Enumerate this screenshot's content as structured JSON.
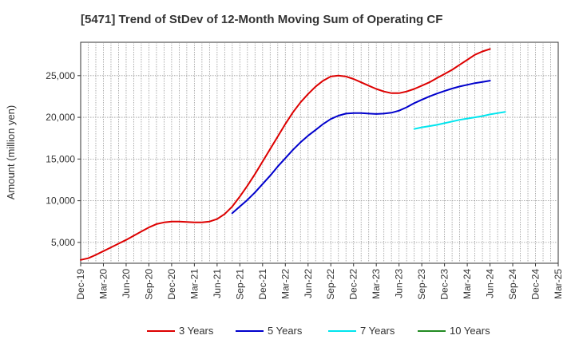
{
  "chart_data": {
    "type": "line",
    "title": "[5471]  Trend of StDev of 12-Month Moving Sum of Operating CF",
    "ylabel": "Amount (million yen)",
    "xlabel": "",
    "x_ticks": [
      "Dec-19",
      "Mar-20",
      "Jun-20",
      "Sep-20",
      "Dec-20",
      "Mar-21",
      "Jun-21",
      "Sep-21",
      "Dec-21",
      "Mar-22",
      "Jun-22",
      "Sep-22",
      "Dec-22",
      "Mar-23",
      "Jun-23",
      "Sep-23",
      "Dec-23",
      "Mar-24",
      "Jun-24",
      "Sep-24",
      "Dec-24",
      "Mar-25"
    ],
    "y_ticks": [
      "5,000",
      "10,000",
      "15,000",
      "20,000",
      "25,000"
    ],
    "y_tick_values": [
      5000,
      10000,
      15000,
      20000,
      25000
    ],
    "ylim": [
      2500,
      29000
    ],
    "xlim": [
      "Dec-19",
      "Mar-25"
    ],
    "grid": true,
    "legend_position": "bottom",
    "series": [
      {
        "name": "3 Years",
        "color": "#dd0000",
        "start": "Dec-19",
        "values": [
          2900,
          3100,
          3500,
          3950,
          4400,
          4850,
          5300,
          5800,
          6300,
          6800,
          7200,
          7400,
          7500,
          7500,
          7450,
          7400,
          7400,
          7500,
          7800,
          8400,
          9300,
          10500,
          11800,
          13200,
          14700,
          16200,
          17700,
          19200,
          20600,
          21800,
          22800,
          23700,
          24400,
          24900,
          25000,
          24900,
          24600,
          24200,
          23800,
          23400,
          23100,
          22900,
          22900,
          23100,
          23400,
          23800,
          24200,
          24700,
          25200,
          25700,
          26300,
          26900,
          27500,
          27900,
          28200
        ]
      },
      {
        "name": "5 Years",
        "color": "#0000cc",
        "start": "Aug-21",
        "values": [
          8500,
          9300,
          10100,
          11000,
          12000,
          13000,
          14100,
          15100,
          16100,
          17000,
          17800,
          18500,
          19200,
          19800,
          20200,
          20450,
          20500,
          20500,
          20450,
          20400,
          20450,
          20550,
          20800,
          21200,
          21700,
          22100,
          22500,
          22850,
          23150,
          23450,
          23700,
          23900,
          24100,
          24250,
          24400
        ]
      },
      {
        "name": "7 Years",
        "color": "#00e5ee",
        "start": "Aug-23",
        "values": [
          18600,
          18800,
          18950,
          19100,
          19300,
          19500,
          19700,
          19850,
          20000,
          20150,
          20350,
          20500,
          20650
        ]
      },
      {
        "name": "10 Years",
        "color": "#228b22",
        "start": "Sep-24",
        "values": []
      }
    ]
  }
}
